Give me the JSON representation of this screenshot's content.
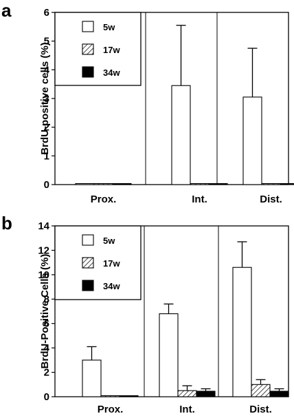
{
  "colors": {
    "w5": "#ffffff",
    "w17": "hatched",
    "w34": "#000000"
  },
  "chart_data": [
    {
      "panel": "a",
      "type": "bar",
      "ylabel": "BrdU-positive cells (%)",
      "ylim": [
        0,
        6
      ],
      "yticks": [
        0,
        1,
        2,
        3,
        4,
        5,
        6
      ],
      "categories": [
        "Prox.",
        "Int.",
        "Dist."
      ],
      "series": [
        {
          "name": "5w",
          "values": [
            0.03,
            3.45,
            3.05
          ],
          "errors": [
            0,
            2.1,
            1.7
          ]
        },
        {
          "name": "17w",
          "values": [
            0.02,
            0.02,
            0.02
          ],
          "errors": [
            0,
            0,
            0
          ]
        },
        {
          "name": "34w",
          "values": [
            0.02,
            0.02,
            0.02
          ],
          "errors": [
            0,
            0,
            0
          ]
        }
      ],
      "legend_position": "top-left"
    },
    {
      "panel": "b",
      "type": "bar",
      "ylabel": "BrdU-Positive Cells (%)",
      "ylim": [
        0,
        14
      ],
      "yticks": [
        0,
        2,
        4,
        6,
        8,
        10,
        12,
        14
      ],
      "categories": [
        "Prox.",
        "Int.",
        "Dist."
      ],
      "series": [
        {
          "name": "5w",
          "values": [
            3.0,
            6.8,
            10.6
          ],
          "errors": [
            1.1,
            0.8,
            2.1
          ]
        },
        {
          "name": "17w",
          "values": [
            0.05,
            0.5,
            1.0
          ],
          "errors": [
            0,
            0.4,
            0.4
          ]
        },
        {
          "name": "34w",
          "values": [
            0.05,
            0.45,
            0.45
          ],
          "errors": [
            0,
            0.2,
            0.2
          ]
        }
      ],
      "legend_position": "top-left"
    }
  ]
}
